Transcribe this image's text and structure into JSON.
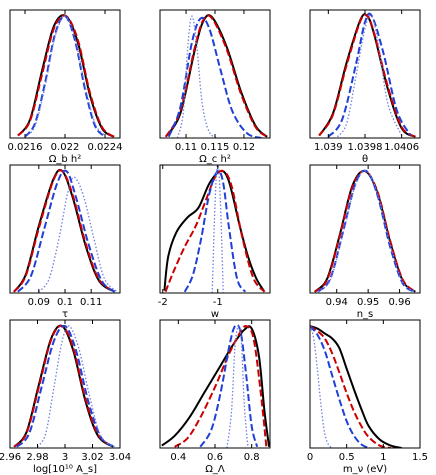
{
  "chart_data": [
    {
      "type": "line",
      "xlabel": "Ω_b h²",
      "x_ticks": [
        0.0216,
        0.022,
        0.0224
      ],
      "xlim": [
        0.02145,
        0.02255
      ],
      "ylim": [
        0,
        1.05
      ],
      "series": [
        {
          "color": "#000000",
          "style": "solid",
          "x": [
            0.02153,
            0.02165,
            0.02177,
            0.02189,
            0.02201,
            0.02213,
            0.02225,
            0.02237,
            0.02249
          ],
          "y": [
            0.02,
            0.15,
            0.55,
            0.92,
            1.0,
            0.78,
            0.35,
            0.08,
            0.01
          ]
        },
        {
          "color": "#cc0000",
          "style": "dashed",
          "x": [
            0.02153,
            0.02165,
            0.02177,
            0.02189,
            0.02201,
            0.02213,
            0.02225,
            0.02237,
            0.02249
          ],
          "y": [
            0.02,
            0.14,
            0.52,
            0.9,
            1.0,
            0.8,
            0.37,
            0.09,
            0.01
          ]
        },
        {
          "color": "#1f3fd6",
          "style": "dashed",
          "x": [
            0.0216,
            0.0217,
            0.0218,
            0.0219,
            0.022,
            0.0221,
            0.0222,
            0.0223,
            0.0224
          ],
          "y": [
            0.01,
            0.12,
            0.45,
            0.85,
            1.0,
            0.8,
            0.4,
            0.1,
            0.01
          ]
        },
        {
          "color": "#6f7fe0",
          "style": "dotted",
          "x": [
            0.0216,
            0.0217,
            0.0218,
            0.0219,
            0.022,
            0.0221,
            0.0222,
            0.0223,
            0.0224
          ],
          "y": [
            0.01,
            0.1,
            0.42,
            0.83,
            1.0,
            0.82,
            0.43,
            0.12,
            0.02
          ]
        }
      ]
    },
    {
      "type": "line",
      "xlabel": "Ω_c h²",
      "x_ticks": [
        0.11,
        0.115,
        0.12
      ],
      "xlim": [
        0.1055,
        0.1245
      ],
      "ylim": [
        0,
        1.05
      ],
      "series": [
        {
          "color": "#000000",
          "style": "solid",
          "x": [
            0.1065,
            0.109,
            0.1115,
            0.113,
            0.1145,
            0.117,
            0.1195,
            0.122,
            0.124
          ],
          "y": [
            0.01,
            0.2,
            0.72,
            0.96,
            0.99,
            0.75,
            0.38,
            0.1,
            0.01
          ]
        },
        {
          "color": "#cc0000",
          "style": "dashed",
          "x": [
            0.1065,
            0.109,
            0.1115,
            0.113,
            0.1145,
            0.117,
            0.1195,
            0.122,
            0.124
          ],
          "y": [
            0.01,
            0.22,
            0.74,
            0.97,
            0.98,
            0.73,
            0.36,
            0.09,
            0.01
          ]
        },
        {
          "color": "#1f3fd6",
          "style": "dashed",
          "x": [
            0.107,
            0.109,
            0.111,
            0.1125,
            0.114,
            0.116,
            0.118,
            0.1205,
            0.123
          ],
          "y": [
            0.01,
            0.25,
            0.78,
            0.98,
            0.9,
            0.55,
            0.22,
            0.04,
            0.0
          ]
        },
        {
          "color": "#6f7fe0",
          "style": "dotted",
          "x": [
            0.1085,
            0.1095,
            0.1103,
            0.111,
            0.1118,
            0.1128,
            0.114,
            0.1155
          ],
          "y": [
            0.0,
            0.2,
            0.75,
            1.0,
            0.78,
            0.28,
            0.05,
            0.0
          ]
        }
      ]
    },
    {
      "type": "line",
      "xlabel": "θ",
      "x_ticks": [
        1.039,
        1.0398,
        1.0406
      ],
      "xlim": [
        1.0386,
        1.041
      ],
      "ylim": [
        0,
        1.05
      ],
      "series": [
        {
          "color": "#000000",
          "style": "solid",
          "x": [
            1.0388,
            1.0391,
            1.0394,
            1.0397,
            1.03985,
            1.04,
            1.0403,
            1.0406,
            1.0409
          ],
          "y": [
            0.02,
            0.2,
            0.62,
            0.97,
            1.0,
            0.85,
            0.4,
            0.08,
            0.01
          ]
        },
        {
          "color": "#cc0000",
          "style": "dashed",
          "x": [
            1.0388,
            1.0391,
            1.0394,
            1.0397,
            1.03985,
            1.04,
            1.0403,
            1.0406,
            1.0409
          ],
          "y": [
            0.02,
            0.19,
            0.6,
            0.96,
            1.0,
            0.86,
            0.42,
            0.09,
            0.01
          ]
        },
        {
          "color": "#1f3fd6",
          "style": "dashed",
          "x": [
            1.039,
            1.0393,
            1.0396,
            1.0398,
            1.03995,
            1.0402,
            1.0405,
            1.0408
          ],
          "y": [
            0.01,
            0.15,
            0.6,
            0.95,
            1.0,
            0.7,
            0.22,
            0.02
          ]
        },
        {
          "color": "#6f7fe0",
          "style": "dotted",
          "x": [
            1.0392,
            1.0394,
            1.0396,
            1.0398,
            1.03995,
            1.0401,
            1.0403,
            1.0406
          ],
          "y": [
            0.01,
            0.12,
            0.5,
            0.9,
            1.0,
            0.75,
            0.28,
            0.02
          ]
        }
      ]
    },
    {
      "type": "line",
      "xlabel": "τ",
      "x_ticks": [
        0.09,
        0.1,
        0.11
      ],
      "xlim": [
        0.079,
        0.121
      ],
      "ylim": [
        0,
        1.05
      ],
      "series": [
        {
          "color": "#000000",
          "style": "solid",
          "x": [
            0.0805,
            0.085,
            0.09,
            0.0955,
            0.099,
            0.103,
            0.108,
            0.113,
            0.119
          ],
          "y": [
            0.01,
            0.15,
            0.55,
            0.93,
            1.0,
            0.78,
            0.38,
            0.1,
            0.01
          ]
        },
        {
          "color": "#cc0000",
          "style": "dashed",
          "x": [
            0.0805,
            0.085,
            0.09,
            0.0955,
            0.099,
            0.103,
            0.108,
            0.113,
            0.119
          ],
          "y": [
            0.01,
            0.14,
            0.53,
            0.92,
            1.0,
            0.8,
            0.4,
            0.11,
            0.01
          ]
        },
        {
          "color": "#1f3fd6",
          "style": "dashed",
          "x": [
            0.082,
            0.087,
            0.092,
            0.097,
            0.1005,
            0.104,
            0.109,
            0.114,
            0.119
          ],
          "y": [
            0.01,
            0.14,
            0.52,
            0.9,
            1.0,
            0.8,
            0.4,
            0.1,
            0.01
          ]
        },
        {
          "color": "#6f7fe0",
          "style": "dotted",
          "x": [
            0.09,
            0.094,
            0.098,
            0.101,
            0.1035,
            0.107,
            0.111,
            0.115,
            0.12
          ],
          "y": [
            0.01,
            0.12,
            0.48,
            0.82,
            0.95,
            0.8,
            0.45,
            0.12,
            0.01
          ]
        }
      ]
    },
    {
      "type": "line",
      "xlabel": "w",
      "x_ticks": [
        -2,
        -1
      ],
      "xlim": [
        -2.05,
        -0.05
      ],
      "ylim": [
        0,
        1.05
      ],
      "series": [
        {
          "color": "#000000",
          "style": "solid",
          "x": [
            -1.97,
            -1.9,
            -1.75,
            -1.55,
            -1.35,
            -1.15,
            -0.95,
            -0.8,
            -0.6,
            -0.45,
            -0.3,
            -0.15
          ],
          "y": [
            0.02,
            0.3,
            0.5,
            0.62,
            0.7,
            0.9,
            1.0,
            0.92,
            0.55,
            0.3,
            0.12,
            0.01
          ]
        },
        {
          "color": "#cc0000",
          "style": "dashed",
          "x": [
            -1.95,
            -1.8,
            -1.6,
            -1.4,
            -1.2,
            -1.05,
            -0.9,
            -0.75,
            -0.55,
            -0.35,
            -0.15
          ],
          "y": [
            0.01,
            0.18,
            0.38,
            0.55,
            0.78,
            0.95,
            1.0,
            0.88,
            0.45,
            0.12,
            0.01
          ]
        },
        {
          "color": "#1f3fd6",
          "style": "dashed",
          "x": [
            -1.6,
            -1.45,
            -1.3,
            -1.15,
            -1.0,
            -0.9,
            -0.8,
            -0.65,
            -0.5
          ],
          "y": [
            0.01,
            0.15,
            0.45,
            0.82,
            1.0,
            0.9,
            0.55,
            0.12,
            0.01
          ]
        },
        {
          "color": "#6f7fe0",
          "style": "dotted",
          "x": [
            -1.1,
            -1.06,
            -1.02,
            -0.98,
            -0.94,
            -0.9
          ],
          "y": [
            0.0,
            0.6,
            1.0,
            1.0,
            0.6,
            0.0
          ]
        }
      ]
    },
    {
      "type": "line",
      "xlabel": "n_s",
      "x_ticks": [
        0.94,
        0.95,
        0.96
      ],
      "xlim": [
        0.9315,
        0.9665
      ],
      "ylim": [
        0,
        1.05
      ],
      "series": [
        {
          "color": "#000000",
          "style": "solid",
          "x": [
            0.933,
            0.937,
            0.941,
            0.945,
            0.949,
            0.953,
            0.957,
            0.961,
            0.965
          ],
          "y": [
            0.01,
            0.12,
            0.48,
            0.88,
            1.0,
            0.82,
            0.42,
            0.1,
            0.01
          ]
        },
        {
          "color": "#cc0000",
          "style": "dashed",
          "x": [
            0.933,
            0.937,
            0.941,
            0.945,
            0.949,
            0.953,
            0.957,
            0.961,
            0.965
          ],
          "y": [
            0.01,
            0.11,
            0.47,
            0.87,
            1.0,
            0.83,
            0.43,
            0.11,
            0.01
          ]
        },
        {
          "color": "#1f3fd6",
          "style": "dashed",
          "x": [
            0.934,
            0.938,
            0.942,
            0.946,
            0.9495,
            0.953,
            0.957,
            0.961,
            0.965
          ],
          "y": [
            0.01,
            0.12,
            0.5,
            0.9,
            1.0,
            0.8,
            0.38,
            0.08,
            0.01
          ]
        },
        {
          "color": "#6f7fe0",
          "style": "dotted",
          "x": [
            0.934,
            0.938,
            0.942,
            0.946,
            0.9495,
            0.953,
            0.957,
            0.961,
            0.965
          ],
          "y": [
            0.01,
            0.11,
            0.49,
            0.89,
            1.0,
            0.81,
            0.4,
            0.09,
            0.01
          ]
        }
      ]
    },
    {
      "type": "line",
      "xlabel": "log[10¹⁰ A_s]",
      "x_ticks": [
        2.96,
        2.98,
        3.0,
        3.02,
        3.04
      ],
      "xlim": [
        2.96,
        3.04
      ],
      "ylim": [
        0,
        1.05
      ],
      "series": [
        {
          "color": "#000000",
          "style": "solid",
          "x": [
            2.963,
            2.972,
            2.981,
            2.99,
            2.998,
            3.006,
            3.015,
            3.024,
            3.035
          ],
          "y": [
            0.01,
            0.13,
            0.52,
            0.9,
            1.0,
            0.8,
            0.38,
            0.1,
            0.01
          ]
        },
        {
          "color": "#cc0000",
          "style": "dashed",
          "x": [
            2.963,
            2.972,
            2.981,
            2.99,
            2.998,
            3.006,
            3.015,
            3.024,
            3.035
          ],
          "y": [
            0.01,
            0.12,
            0.5,
            0.89,
            1.0,
            0.82,
            0.4,
            0.11,
            0.01
          ]
        },
        {
          "color": "#1f3fd6",
          "style": "dashed",
          "x": [
            2.965,
            2.974,
            2.983,
            2.992,
            3.0,
            3.008,
            3.017,
            3.026,
            3.036
          ],
          "y": [
            0.01,
            0.12,
            0.5,
            0.88,
            1.0,
            0.8,
            0.38,
            0.09,
            0.01
          ]
        },
        {
          "color": "#6f7fe0",
          "style": "dotted",
          "x": [
            2.98,
            2.986,
            2.992,
            2.998,
            3.003,
            3.01,
            3.018,
            3.026,
            3.036
          ],
          "y": [
            0.01,
            0.12,
            0.5,
            0.88,
            1.0,
            0.82,
            0.42,
            0.1,
            0.01
          ]
        }
      ]
    },
    {
      "type": "line",
      "xlabel": "Ω_Λ",
      "x_ticks": [
        0.4,
        0.6,
        0.8
      ],
      "xlim": [
        0.3,
        0.9
      ],
      "ylim": [
        0,
        1.05
      ],
      "series": [
        {
          "color": "#000000",
          "style": "solid",
          "x": [
            0.31,
            0.38,
            0.46,
            0.54,
            0.62,
            0.7,
            0.76,
            0.8,
            0.84,
            0.87,
            0.895
          ],
          "y": [
            0.02,
            0.1,
            0.25,
            0.45,
            0.65,
            0.85,
            0.97,
            0.98,
            0.75,
            0.3,
            0.01
          ]
        },
        {
          "color": "#cc0000",
          "style": "dashed",
          "x": [
            0.38,
            0.45,
            0.52,
            0.6,
            0.67,
            0.73,
            0.77,
            0.81,
            0.85,
            0.88
          ],
          "y": [
            0.01,
            0.08,
            0.25,
            0.5,
            0.75,
            0.93,
            1.0,
            0.9,
            0.45,
            0.01
          ]
        },
        {
          "color": "#1f3fd6",
          "style": "dashed",
          "x": [
            0.52,
            0.58,
            0.63,
            0.68,
            0.71,
            0.74,
            0.77,
            0.8,
            0.83
          ],
          "y": [
            0.01,
            0.15,
            0.45,
            0.85,
            1.0,
            0.95,
            0.6,
            0.18,
            0.01
          ]
        },
        {
          "color": "#6f7fe0",
          "style": "dotted",
          "x": [
            0.665,
            0.69,
            0.71,
            0.73,
            0.745,
            0.76,
            0.78
          ],
          "y": [
            0.0,
            0.3,
            0.85,
            1.0,
            0.85,
            0.35,
            0.0
          ]
        }
      ]
    },
    {
      "type": "line",
      "xlabel": "m_ν (eV)",
      "x_ticks": [
        0,
        0.5,
        1,
        1.5
      ],
      "xlim": [
        0,
        1.5
      ],
      "ylim": [
        0,
        1.05
      ],
      "series": [
        {
          "color": "#000000",
          "style": "solid",
          "x": [
            0,
            0.1,
            0.2,
            0.3,
            0.4,
            0.5,
            0.6,
            0.7,
            0.8,
            0.95,
            1.1,
            1.25
          ],
          "y": [
            1.0,
            0.98,
            0.94,
            0.9,
            0.82,
            0.65,
            0.48,
            0.32,
            0.18,
            0.07,
            0.02,
            0.0
          ]
        },
        {
          "color": "#cc0000",
          "style": "dashed",
          "x": [
            0,
            0.1,
            0.2,
            0.3,
            0.4,
            0.5,
            0.6,
            0.7,
            0.8,
            0.95,
            1.1
          ],
          "y": [
            1.0,
            0.96,
            0.9,
            0.78,
            0.62,
            0.45,
            0.3,
            0.18,
            0.09,
            0.02,
            0.0
          ]
        },
        {
          "color": "#1f3fd6",
          "style": "dashed",
          "x": [
            0,
            0.1,
            0.2,
            0.3,
            0.4,
            0.5,
            0.6,
            0.7,
            0.8
          ],
          "y": [
            1.0,
            0.93,
            0.8,
            0.6,
            0.4,
            0.22,
            0.1,
            0.03,
            0.0
          ]
        },
        {
          "color": "#6f7fe0",
          "style": "dotted",
          "x": [
            0,
            0.05,
            0.1,
            0.15,
            0.2,
            0.25,
            0.3
          ],
          "y": [
            1.0,
            0.9,
            0.65,
            0.35,
            0.12,
            0.03,
            0.0
          ]
        }
      ]
    }
  ]
}
